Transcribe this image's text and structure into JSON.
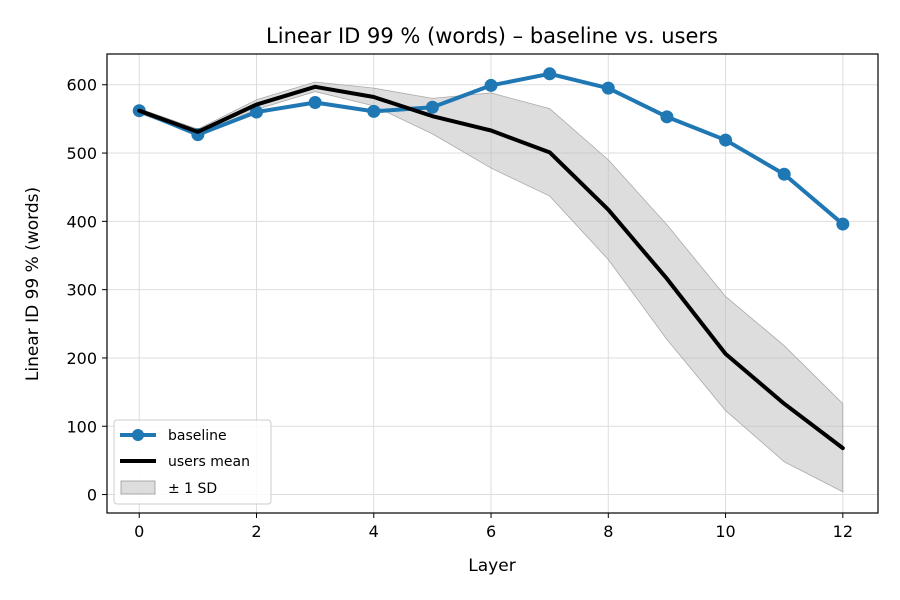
{
  "chart_data": {
    "type": "line",
    "title": "Linear ID 99 % (words) – baseline vs. users",
    "xlabel": "Layer",
    "ylabel": "Linear ID 99 % (words)",
    "x": [
      0,
      1,
      2,
      3,
      4,
      5,
      6,
      7,
      8,
      9,
      10,
      11,
      12
    ],
    "xlim": [
      -0.55,
      12.6
    ],
    "ylim": [
      -27,
      645
    ],
    "xticks": [
      0,
      2,
      4,
      6,
      8,
      10,
      12
    ],
    "yticks": [
      0,
      100,
      200,
      300,
      400,
      500,
      600
    ],
    "grid": true,
    "legend_position": "lower-left",
    "series": [
      {
        "name": "baseline",
        "color": "#1f77b4",
        "marker": "circle",
        "values": [
          562,
          527,
          560,
          574,
          561,
          567,
          599,
          616,
          595,
          553,
          519,
          469,
          396
        ]
      },
      {
        "name": "users mean",
        "color": "#000000",
        "marker": "none",
        "values": [
          562,
          531,
          571,
          597,
          582,
          554,
          533,
          501,
          417,
          316,
          206,
          133,
          68
        ]
      }
    ],
    "band": {
      "name": "± 1 SD",
      "color": "#bbbbbb",
      "upper": [
        565,
        535,
        578,
        604,
        595,
        580,
        588,
        565,
        490,
        395,
        290,
        218,
        133
      ],
      "lower": [
        558,
        527,
        564,
        590,
        569,
        528,
        478,
        437,
        344,
        227,
        123,
        48,
        4
      ]
    }
  }
}
